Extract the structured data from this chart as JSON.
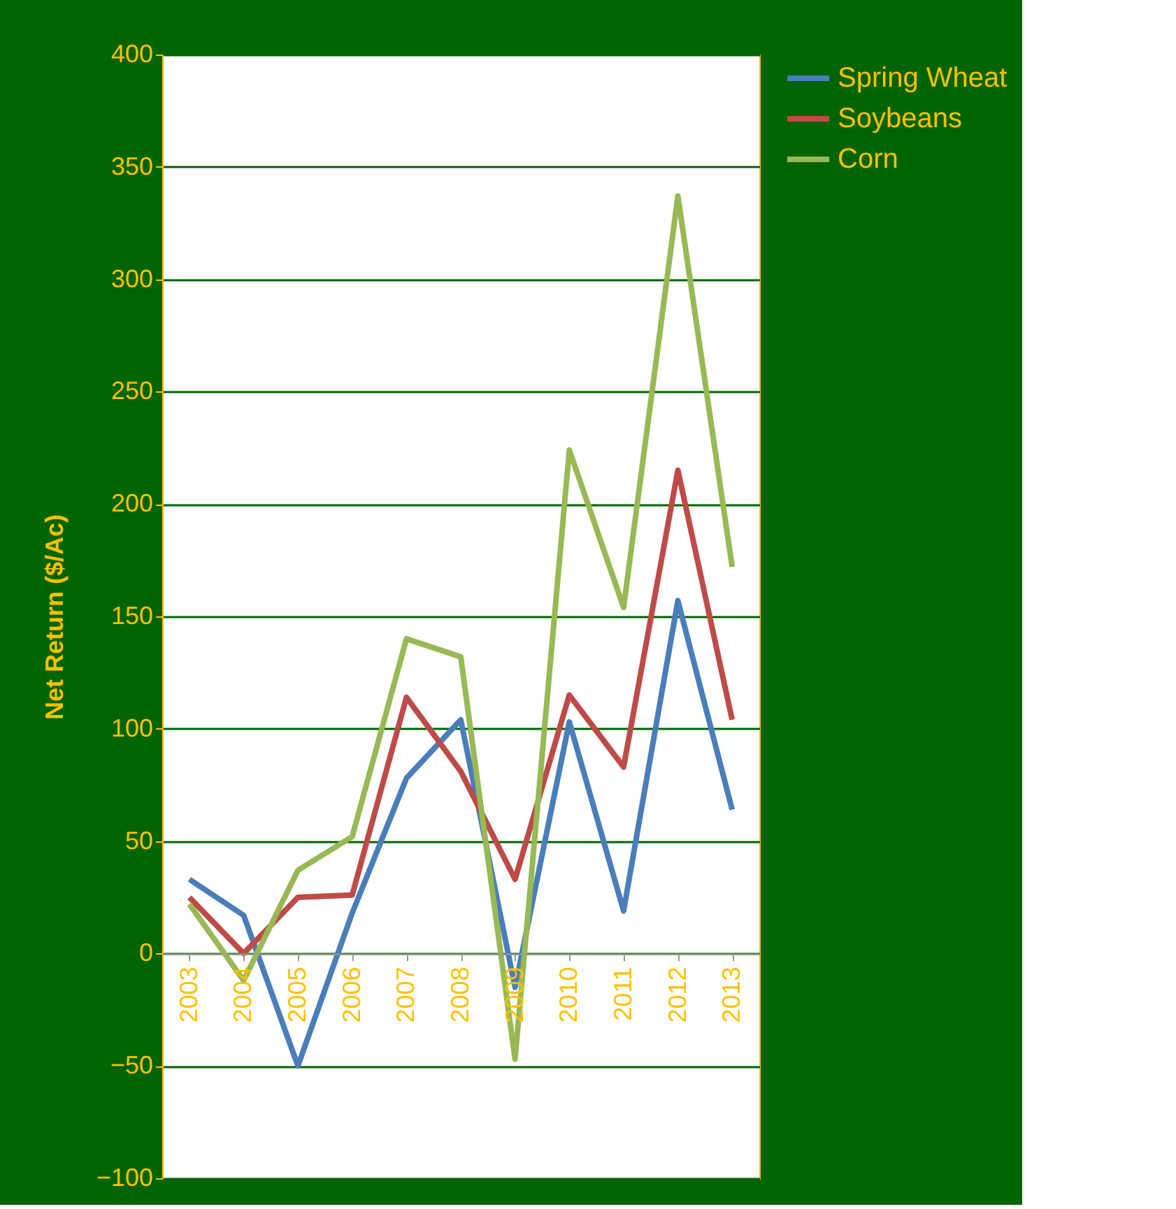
{
  "chart_data": {
    "type": "line",
    "ylabel": "Net Return ($/Ac)",
    "categories": [
      "2003",
      "2004",
      "2005",
      "2006",
      "2007",
      "2008",
      "2009",
      "2010",
      "2011",
      "2012",
      "2013"
    ],
    "series": [
      {
        "name": "Spring Wheat",
        "color": "#4a7ebb",
        "values": [
          33,
          17,
          -50,
          18,
          78,
          104,
          -15,
          103,
          19,
          157,
          64
        ]
      },
      {
        "name": "Soybeans",
        "color": "#be4b48",
        "values": [
          25,
          0,
          25,
          26,
          114,
          81,
          33,
          115,
          83,
          215,
          104
        ]
      },
      {
        "name": "Corn",
        "color": "#98b954",
        "values": [
          22,
          -12,
          37,
          52,
          140,
          132,
          -47,
          224,
          154,
          337,
          172
        ]
      }
    ],
    "ylim": [
      -100,
      400
    ],
    "yticks": [
      -100,
      -50,
      0,
      50,
      100,
      150,
      200,
      250,
      300,
      350,
      400
    ],
    "grid": "y",
    "legend": "right",
    "marker": "none",
    "line_style": "solid"
  }
}
